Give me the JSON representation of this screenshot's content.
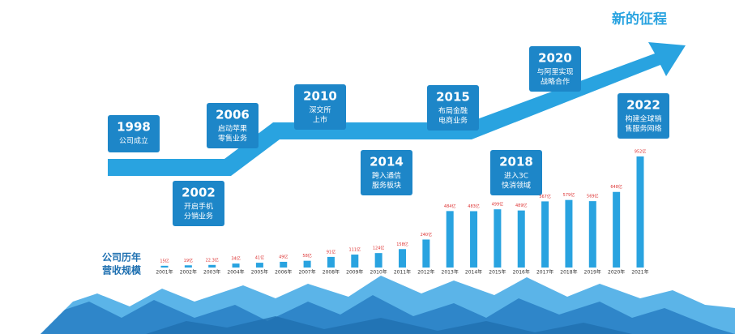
{
  "headline": "新的征程",
  "timeline": [
    {
      "year": "1998",
      "lines": [
        "公司成立"
      ]
    },
    {
      "year": "2002",
      "lines": [
        "开启手机",
        "分销业务"
      ]
    },
    {
      "year": "2006",
      "lines": [
        "启动苹果",
        "零售业务"
      ]
    },
    {
      "year": "2010",
      "lines": [
        "深交所",
        "上市"
      ]
    },
    {
      "year": "2014",
      "lines": [
        "跨入通信",
        "服务板块"
      ]
    },
    {
      "year": "2015",
      "lines": [
        "布局金融",
        "电商业务"
      ]
    },
    {
      "year": "2018",
      "lines": [
        "进入3C",
        "快消领域"
      ]
    },
    {
      "year": "2020",
      "lines": [
        "与阿里实现",
        "战略合作"
      ]
    },
    {
      "year": "2022",
      "lines": [
        "构建全球销",
        "售服务网络"
      ]
    }
  ],
  "chart_data": {
    "type": "bar",
    "title": [
      "公司历年",
      "营收规模"
    ],
    "color": "#29a3e0",
    "categories": [
      "2001年",
      "2002年",
      "2003年",
      "2004年",
      "2005年",
      "2006年",
      "2007年",
      "2008年",
      "2009年",
      "2010年",
      "2011年",
      "2012年",
      "2013年",
      "2014年",
      "2015年",
      "2016年",
      "2017年",
      "2018年",
      "2019年",
      "2020年",
      "2021年"
    ],
    "values": [
      15,
      19,
      22.3,
      34,
      41,
      49,
      58,
      91,
      111,
      124,
      158,
      240,
      484,
      483,
      499,
      489,
      567,
      579,
      569,
      648,
      952
    ],
    "value_labels": [
      "15亿",
      "19亿",
      "22.3亿",
      "34亿",
      "41亿",
      "49亿",
      "58亿",
      "91亿",
      "111亿",
      "124亿",
      "158亿",
      "240亿",
      "484亿",
      "483亿",
      "499亿",
      "489亿",
      "567亿",
      "579亿",
      "569亿",
      "648亿",
      "952亿"
    ]
  }
}
